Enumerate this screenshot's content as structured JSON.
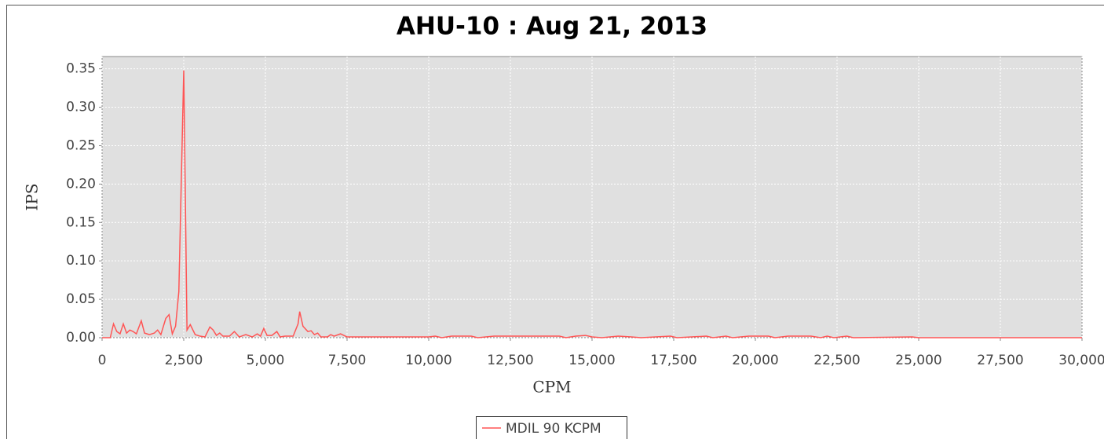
{
  "chart_data": {
    "type": "line",
    "title": "AHU-10 : Aug 21, 2013",
    "x_label": "CPM",
    "y_label": "IPS",
    "xlim": [
      0,
      30000
    ],
    "ylim": [
      0,
      0.366
    ],
    "xticks": [
      0,
      {
        "value": 2500,
        "label": "2,500"
      },
      {
        "value": 5000,
        "label": "5,000"
      },
      {
        "value": 7500,
        "label": "7,500"
      },
      {
        "value": 10000,
        "label": "10,000"
      },
      {
        "value": 12500,
        "label": "12,500"
      },
      {
        "value": 15000,
        "label": "15,000"
      },
      {
        "value": 17500,
        "label": "17,500"
      },
      {
        "value": 20000,
        "label": "20,000"
      },
      {
        "value": 22500,
        "label": "22,500"
      },
      {
        "value": 25000,
        "label": "25,000"
      },
      {
        "value": 27500,
        "label": "27,500"
      },
      {
        "value": 30000,
        "label": "30,000"
      }
    ],
    "yticks": [
      {
        "value": 0,
        "label": "0.00"
      },
      0.05,
      {
        "value": 0.1,
        "label": "0.10"
      },
      0.15,
      {
        "value": 0.2,
        "label": "0.20"
      },
      0.25,
      {
        "value": 0.3,
        "label": "0.30"
      },
      0.35
    ],
    "grid": true,
    "legend": "bottom",
    "x": [
      0,
      250,
      350,
      450,
      550,
      650,
      750,
      850,
      950,
      1050,
      1200,
      1300,
      1450,
      1600,
      1700,
      1800,
      1950,
      2050,
      2150,
      2250,
      2350,
      2500,
      2600,
      2700,
      2850,
      3000,
      3150,
      3300,
      3400,
      3500,
      3600,
      3700,
      3900,
      4050,
      4200,
      4400,
      4600,
      4750,
      4850,
      4950,
      5050,
      5200,
      5350,
      5450,
      5600,
      5850,
      6000,
      6050,
      6150,
      6300,
      6400,
      6500,
      6600,
      6700,
      6900,
      7000,
      7100,
      7300,
      7400,
      7500,
      10000,
      10200,
      10400,
      10700,
      11300,
      11500,
      12000,
      14000,
      14200,
      14500,
      14800,
      15000,
      15300,
      15800,
      16200,
      16500,
      17400,
      17600,
      18500,
      18700,
      19100,
      19300,
      19800,
      20400,
      20600,
      21000,
      21700,
      22000,
      22200,
      22400,
      22800,
      23000,
      24800,
      25000,
      30000
    ],
    "series": [
      {
        "name": "MDIL 90 KCPM",
        "color": "#ff5555",
        "values": [
          0,
          0,
          0.018,
          0.008,
          0.005,
          0.018,
          0.006,
          0.01,
          0.008,
          0.005,
          0.022,
          0.006,
          0.004,
          0.006,
          0.01,
          0.004,
          0.025,
          0.03,
          0.005,
          0.015,
          0.06,
          0.348,
          0.01,
          0.017,
          0.004,
          0.002,
          0.001,
          0.014,
          0.01,
          0.003,
          0.006,
          0.002,
          0.002,
          0.008,
          0.001,
          0.004,
          0.001,
          0.005,
          0.002,
          0.012,
          0.003,
          0.003,
          0.008,
          0.001,
          0.002,
          0.002,
          0.018,
          0.034,
          0.015,
          0.008,
          0.009,
          0.004,
          0.006,
          0.001,
          0.001,
          0.004,
          0.002,
          0.005,
          0.003,
          0.001,
          0.001,
          0.002,
          0,
          0.002,
          0.002,
          0,
          0.002,
          0.002,
          0,
          0.002,
          0.003,
          0.001,
          0,
          0.002,
          0.001,
          0,
          0.002,
          0,
          0.002,
          0,
          0.002,
          0,
          0.002,
          0.002,
          0,
          0.002,
          0.002,
          0,
          0.002,
          0,
          0.002,
          0,
          0.001,
          0,
          0
        ]
      }
    ]
  }
}
